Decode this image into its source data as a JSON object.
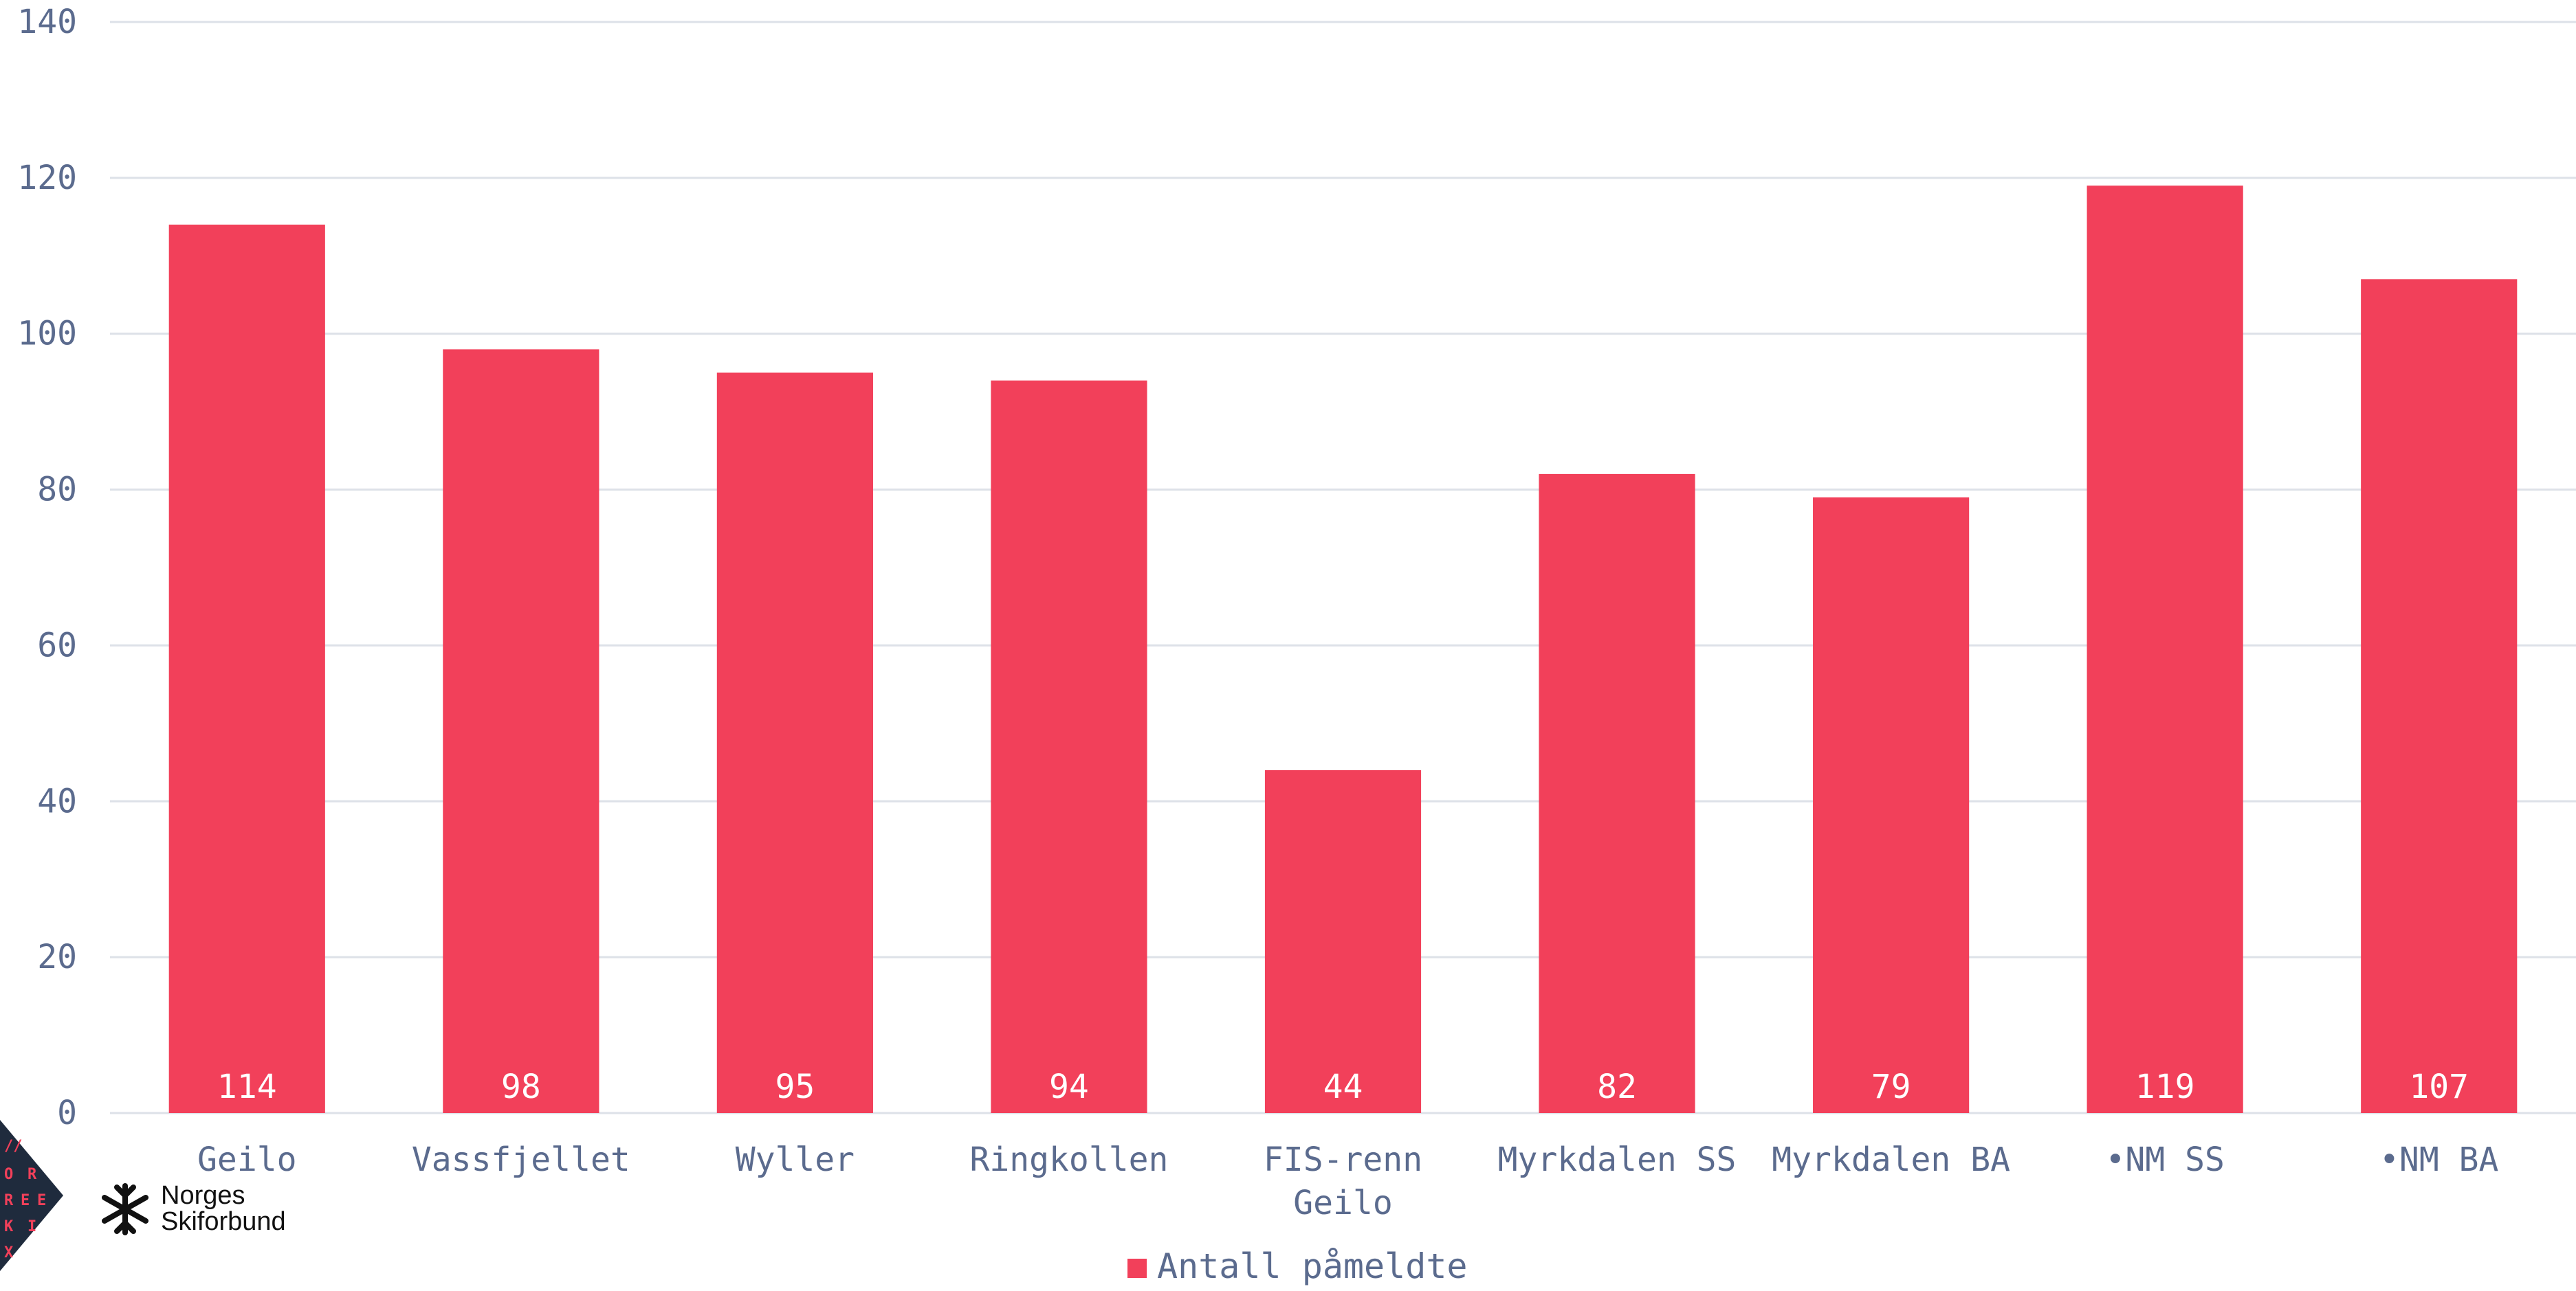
{
  "chart_data": {
    "type": "bar",
    "categories": [
      "Geilo",
      "Vassfjellet",
      "Wyller",
      "Ringkollen",
      "FIS-renn Geilo",
      "Myrkdalen SS",
      "Myrkdalen BA",
      "•NM SS",
      "•NM BA"
    ],
    "category_lines": [
      [
        "Geilo"
      ],
      [
        "Vassfjellet"
      ],
      [
        "Wyller"
      ],
      [
        "Ringkollen"
      ],
      [
        "FIS-renn",
        "Geilo"
      ],
      [
        "Myrkdalen SS"
      ],
      [
        "Myrkdalen BA"
      ],
      [
        "•NM SS"
      ],
      [
        "•NM BA"
      ]
    ],
    "series": [
      {
        "name": "Antall påmeldte",
        "values": [
          114,
          98,
          95,
          94,
          44,
          82,
          79,
          119,
          107
        ]
      }
    ],
    "title": "",
    "xlabel": "",
    "ylabel": "",
    "ylim": [
      0,
      140
    ],
    "yticks": [
      0,
      20,
      40,
      60,
      80,
      100,
      120,
      140
    ],
    "grid": true,
    "legend_position": "bottom-center",
    "data_labels": "inside-bottom",
    "colors": {
      "bar": "#f2405a",
      "grid": "#dde1e8",
      "text": "#5b6b8e",
      "data_label": "#ffffff"
    }
  },
  "logos": {
    "badge_letters": [
      "//",
      "O",
      "R",
      "R",
      "E",
      "E",
      "K",
      "I",
      "X"
    ],
    "badge_color": "#1f2b3d",
    "snowflake_icon": "snowflake-icon",
    "brand_line1": "Norges",
    "brand_line2": "Skiforbund"
  }
}
